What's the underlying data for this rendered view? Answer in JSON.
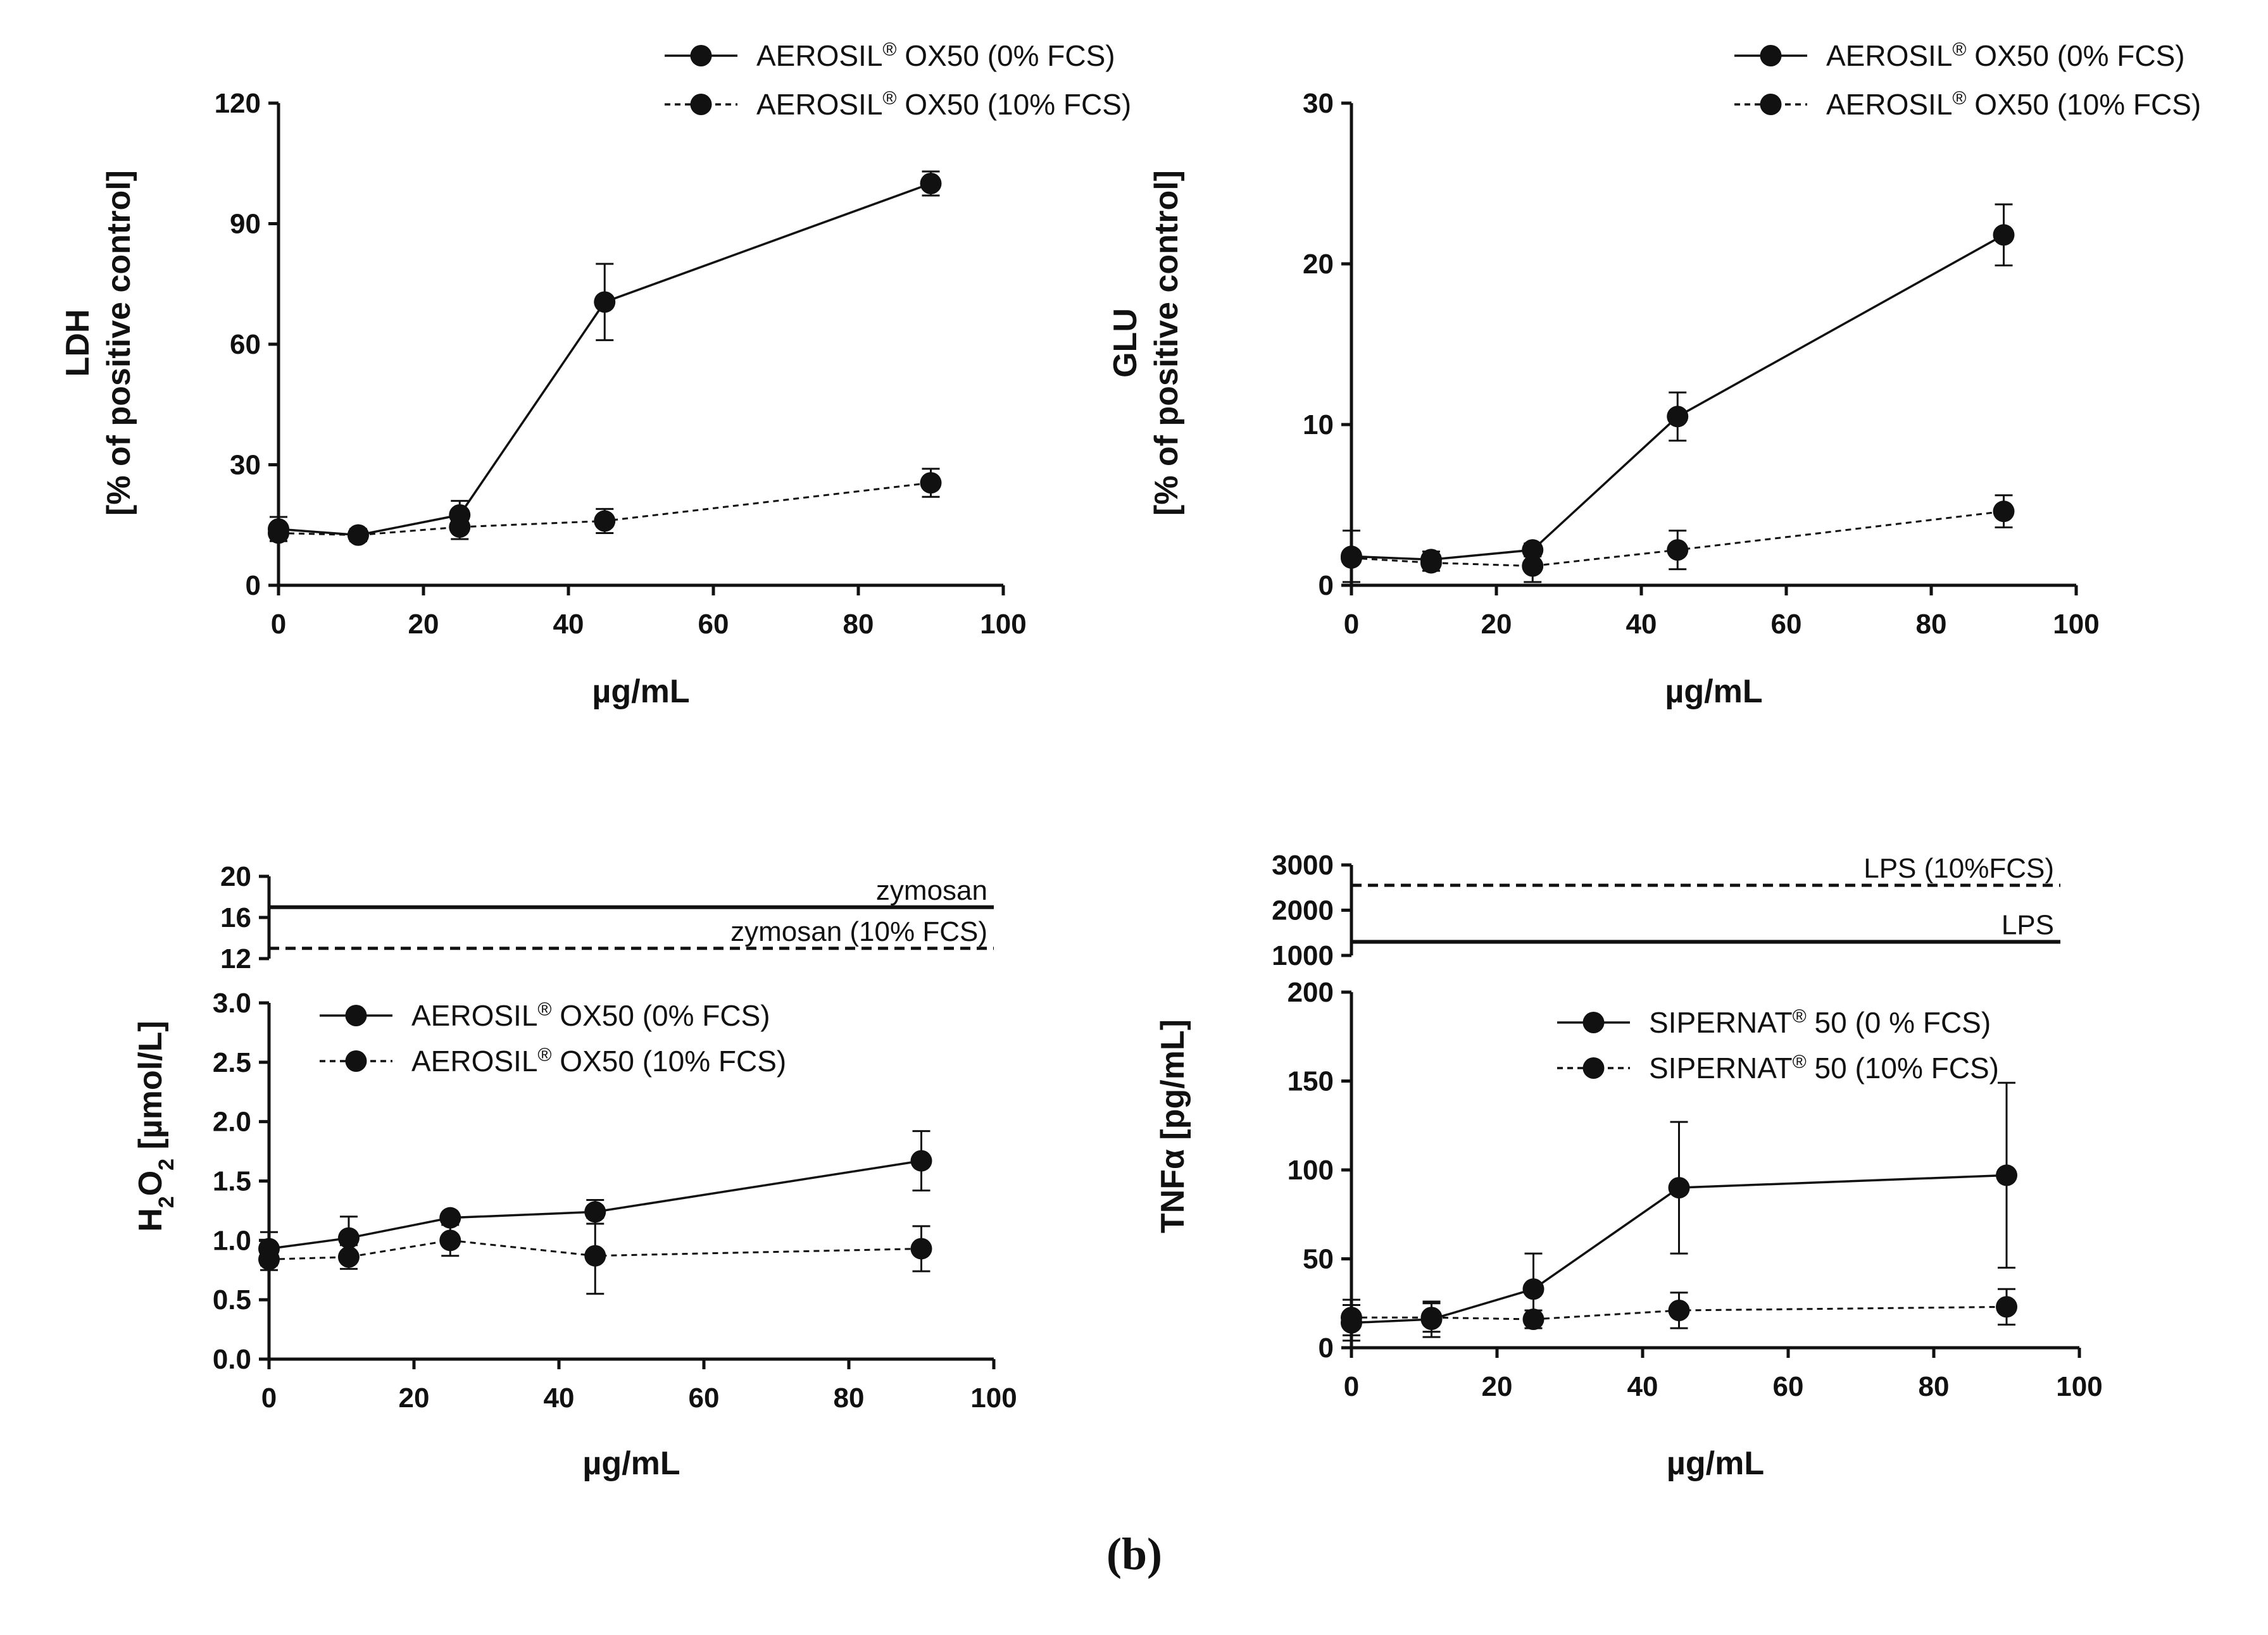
{
  "figure": {
    "caption": "b",
    "paren_open": "(",
    "paren_close": ")",
    "registered": "®"
  },
  "colors": {
    "ink": "#111111"
  },
  "chart_data": [
    {
      "id": "ldh",
      "type": "line",
      "ylabel_lines": [
        "LDH",
        "[% of positive control]"
      ],
      "xlabel": "µg/mL",
      "xlim": [
        0,
        100
      ],
      "ylim": [
        0,
        120
      ],
      "xticks": [
        0,
        20,
        40,
        60,
        80,
        100
      ],
      "yticks": [
        0,
        30,
        60,
        90,
        120
      ],
      "legend": "top-right",
      "series": [
        {
          "name": "AEROSIL® OX50 (0% FCS)",
          "name_parts": [
            "AEROSIL",
            "®",
            " OX50 (0% FCS)"
          ],
          "style": "solid",
          "x": [
            0,
            11,
            25,
            45,
            90
          ],
          "y": [
            14,
            12.5,
            17.5,
            70.5,
            100
          ],
          "err": [
            3,
            1.5,
            3.5,
            9.5,
            3
          ]
        },
        {
          "name": "AEROSIL® OX50 (10% FCS)",
          "name_parts": [
            "AEROSIL",
            "®",
            " OX50 (10% FCS)"
          ],
          "style": "dashed",
          "x": [
            0,
            11,
            25,
            45,
            90
          ],
          "y": [
            13,
            12.5,
            14.5,
            16,
            25.5
          ],
          "err": [
            2,
            1.5,
            3,
            3,
            3.5
          ]
        }
      ]
    },
    {
      "id": "glu",
      "type": "line",
      "ylabel_lines": [
        "GLU",
        "[% of positive control]"
      ],
      "xlabel": "µg/mL",
      "xlim": [
        0,
        100
      ],
      "ylim": [
        0,
        30
      ],
      "xticks": [
        0,
        20,
        40,
        60,
        80,
        100
      ],
      "yticks": [
        0,
        10,
        20,
        30
      ],
      "legend": "top-right",
      "series": [
        {
          "name": "AEROSIL® OX50 (0% FCS)",
          "name_parts": [
            "AEROSIL",
            "®",
            " OX50 (0% FCS)"
          ],
          "style": "solid",
          "x": [
            0,
            11,
            25,
            45,
            90
          ],
          "y": [
            1.8,
            1.6,
            2.2,
            10.5,
            21.8
          ],
          "err": [
            1.6,
            0.5,
            0.4,
            1.5,
            1.9
          ]
        },
        {
          "name": "AEROSIL® OX50 (10% FCS)",
          "name_parts": [
            "AEROSIL",
            "®",
            " OX50 (10% FCS)"
          ],
          "style": "dashed",
          "x": [
            0,
            11,
            25,
            45,
            90
          ],
          "y": [
            1.7,
            1.4,
            1.2,
            2.2,
            4.6
          ],
          "err": [
            0.3,
            0.5,
            1.0,
            1.2,
            1.0
          ]
        }
      ]
    },
    {
      "id": "h2o2",
      "type": "line",
      "ylabel_parts": [
        "H",
        "2",
        "O",
        "2",
        " [µmol/L]"
      ],
      "xlabel": "µg/mL",
      "xlim": [
        0,
        100
      ],
      "ylim": [
        0,
        3.0
      ],
      "xticks": [
        0,
        20,
        40,
        60,
        80,
        100
      ],
      "yticks": [
        0.0,
        0.5,
        1.0,
        1.5,
        2.0,
        2.5,
        3.0
      ],
      "ytick_labels": [
        "0.0",
        "0.5",
        "1.0",
        "1.5",
        "2.0",
        "2.5",
        "3.0"
      ],
      "upper_axis": {
        "ylim": [
          12,
          20
        ],
        "yticks": [
          12,
          16,
          20
        ]
      },
      "reference_lines": [
        {
          "label": "zymosan",
          "value": 17,
          "style": "solid"
        },
        {
          "label": "zymosan (10% FCS)",
          "value": 13,
          "style": "dashed"
        }
      ],
      "legend": "top-left",
      "series": [
        {
          "name": "AEROSIL® OX50 (0% FCS)",
          "name_parts": [
            "AEROSIL",
            "®",
            " OX50 (0% FCS)"
          ],
          "style": "solid",
          "x": [
            0,
            11,
            25,
            45,
            90
          ],
          "y": [
            0.93,
            1.02,
            1.19,
            1.24,
            1.67
          ],
          "err": [
            0.14,
            0.18,
            0.04,
            0.1,
            0.25
          ]
        },
        {
          "name": "AEROSIL® OX50 (10% FCS)",
          "name_parts": [
            "AEROSIL",
            "®",
            " OX50 (10% FCS)"
          ],
          "style": "dashed",
          "x": [
            0,
            11,
            25,
            45,
            90
          ],
          "y": [
            0.84,
            0.86,
            1.0,
            0.87,
            0.93
          ],
          "err": [
            0.09,
            0.1,
            0.13,
            0.32,
            0.19
          ]
        }
      ]
    },
    {
      "id": "tnfa",
      "type": "line",
      "ylabel": "TNFα [pg/mL]",
      "xlabel": "µg/mL",
      "xlim": [
        0,
        100
      ],
      "ylim": [
        0,
        200
      ],
      "xticks": [
        0,
        20,
        40,
        60,
        80,
        100
      ],
      "yticks": [
        0,
        50,
        100,
        150,
        200
      ],
      "upper_axis": {
        "ylim": [
          1000,
          3000
        ],
        "yticks": [
          1000,
          2000,
          3000
        ]
      },
      "reference_lines": [
        {
          "label": "LPS (10%FCS)",
          "value": 2550,
          "style": "dashed"
        },
        {
          "label": "LPS",
          "value": 1300,
          "style": "solid"
        }
      ],
      "legend": "top-right",
      "series": [
        {
          "name": "SIPERNAT® 50 (0 % FCS)",
          "name_parts": [
            "SIPERNAT",
            "®",
            " 50 (0 % FCS)"
          ],
          "style": "solid",
          "x": [
            0,
            11,
            25,
            45,
            90
          ],
          "y": [
            14,
            16,
            33,
            90,
            97
          ],
          "err": [
            10,
            10,
            20,
            37,
            52
          ]
        },
        {
          "name": "SIPERNAT® 50 (10% FCS)",
          "name_parts": [
            "SIPERNAT",
            "®",
            " 50 (10% FCS)"
          ],
          "style": "dashed",
          "x": [
            0,
            11,
            25,
            45,
            90
          ],
          "y": [
            17,
            17,
            16,
            21,
            23
          ],
          "err": [
            10,
            8,
            5,
            10,
            10
          ]
        }
      ]
    }
  ]
}
